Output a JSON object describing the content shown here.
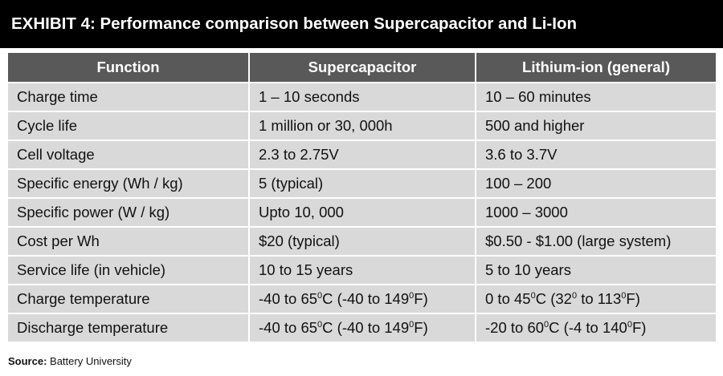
{
  "title": "EXHIBIT 4: Performance comparison between Supercapacitor and Li-Ion",
  "table": {
    "headers": [
      "Function",
      "Supercapacitor",
      "Lithium-ion (general)"
    ],
    "rows": [
      {
        "function": "Charge time",
        "supercapacitor": [
          {
            "t": "1 – 10 seconds"
          }
        ],
        "lithium_ion": [
          {
            "t": "10 – 60 minutes"
          }
        ]
      },
      {
        "function": "Cycle life",
        "supercapacitor": [
          {
            "t": "1 million or 30, 000h"
          }
        ],
        "lithium_ion": [
          {
            "t": "500 and higher"
          }
        ]
      },
      {
        "function": "Cell voltage",
        "supercapacitor": [
          {
            "t": "2.3 to 2.75V"
          }
        ],
        "lithium_ion": [
          {
            "t": "3.6 to 3.7V"
          }
        ]
      },
      {
        "function": "Specific energy (Wh / kg)",
        "supercapacitor": [
          {
            "t": "5 (typical)"
          }
        ],
        "lithium_ion": [
          {
            "t": "100 – 200"
          }
        ]
      },
      {
        "function": "Specific power (W / kg)",
        "supercapacitor": [
          {
            "t": "Upto  10, 000"
          }
        ],
        "lithium_ion": [
          {
            "t": "1000 – 3000"
          }
        ]
      },
      {
        "function": "Cost per Wh",
        "supercapacitor": [
          {
            "t": "$20 (typical)"
          }
        ],
        "lithium_ion": [
          {
            "t": "$0.50 - $1.00 (large system)"
          }
        ]
      },
      {
        "function": "Service life (in vehicle)",
        "supercapacitor": [
          {
            "t": "10 to 15 years"
          }
        ],
        "lithium_ion": [
          {
            "t": "5 to 10 years"
          }
        ]
      },
      {
        "function": "Charge temperature",
        "supercapacitor": [
          {
            "t": "-40 to 65"
          },
          {
            "t": "0",
            "sup": true
          },
          {
            "t": "C (-40 to 149"
          },
          {
            "t": "0",
            "sup": true
          },
          {
            "t": "F)"
          }
        ],
        "lithium_ion": [
          {
            "t": "0 to 45"
          },
          {
            "t": "0",
            "sup": true
          },
          {
            "t": "C (32"
          },
          {
            "t": "0",
            "sup": true
          },
          {
            "t": " to 113"
          },
          {
            "t": "0",
            "sup": true
          },
          {
            "t": "F)"
          }
        ]
      },
      {
        "function": "Discharge temperature",
        "supercapacitor": [
          {
            "t": "-40 to 65"
          },
          {
            "t": "0",
            "sup": true
          },
          {
            "t": "C (-40 to 149"
          },
          {
            "t": "0",
            "sup": true
          },
          {
            "t": "F)"
          }
        ],
        "lithium_ion": [
          {
            "t": "-20 to 60"
          },
          {
            "t": "0",
            "sup": true
          },
          {
            "t": "C (-4 to 140"
          },
          {
            "t": "0",
            "sup": true
          },
          {
            "t": "F)"
          }
        ]
      }
    ]
  },
  "source": {
    "label": "Source:",
    "text": " Battery University"
  }
}
